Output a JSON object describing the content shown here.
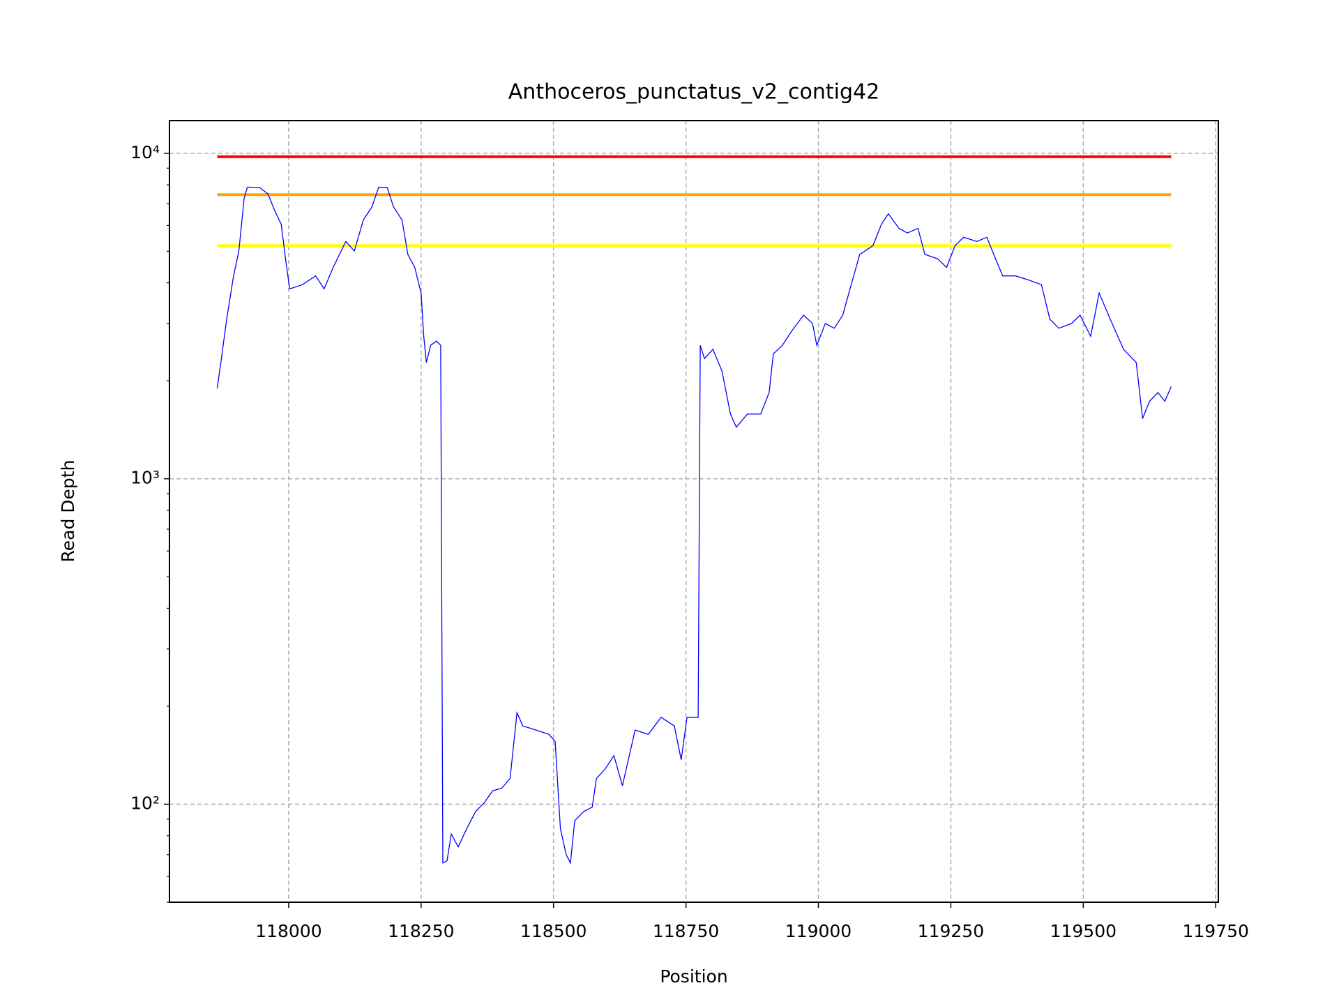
{
  "chart_data": {
    "type": "line",
    "title": "Anthoceros_punctatus_v2_contig42",
    "x_label": "Position",
    "y_label": "Read Depth",
    "log_y": true,
    "grid": true,
    "xlim": [
      117775,
      119755
    ],
    "ylim": [
      50,
      12600
    ],
    "xticks": [
      118000,
      118250,
      118500,
      118750,
      119000,
      119250,
      119500,
      119750
    ],
    "yticks": [
      {
        "value": 100,
        "label": "10²"
      },
      {
        "value": 1000,
        "label": "10³"
      },
      {
        "value": 10000,
        "label": "10⁴"
      }
    ],
    "yminorticks": [
      50,
      60,
      70,
      80,
      90,
      200,
      300,
      400,
      500,
      600,
      700,
      800,
      900,
      2000,
      3000,
      4000,
      5000,
      6000,
      7000,
      8000,
      9000
    ],
    "series": [
      {
        "color": "#0000ff",
        "width": 1.3,
        "x": [
          117865,
          117872,
          117883,
          117896,
          117906,
          117916,
          117922,
          117945,
          117961,
          117974,
          117986,
          117994,
          118002,
          118026,
          118051,
          118067,
          118084,
          118108,
          118124,
          118141,
          118157,
          118170,
          118186,
          118198,
          118214,
          118225,
          118238,
          118250,
          118255,
          118260,
          118268,
          118279,
          118287,
          118291,
          118299,
          118307,
          118320,
          118336,
          118353,
          118369,
          118385,
          118402,
          118418,
          118431,
          118442,
          118467,
          118491,
          118503,
          118513,
          118524,
          118532,
          118540,
          118557,
          118573,
          118581,
          118597,
          118614,
          118630,
          118654,
          118679,
          118703,
          118728,
          118741,
          118752,
          118773,
          118777,
          118785,
          118801,
          118818,
          118834,
          118845,
          118866,
          118891,
          118907,
          118915,
          118932,
          118948,
          118972,
          118989,
          118997,
          119013,
          119030,
          119046,
          119062,
          119078,
          119103,
          119119,
          119132,
          119152,
          119168,
          119188,
          119201,
          119225,
          119242,
          119258,
          119274,
          119299,
          119318,
          119331,
          119348,
          119372,
          119397,
          119421,
          119437,
          119454,
          119478,
          119494,
          119514,
          119530,
          119551,
          119576,
          119600,
          119612,
          119625,
          119641,
          119654,
          119666
        ],
        "values": [
          1895,
          2275,
          3090,
          4200,
          5010,
          7280,
          7870,
          7850,
          7500,
          6640,
          6050,
          4740,
          3830,
          3950,
          4200,
          3830,
          4460,
          5360,
          5010,
          6240,
          6840,
          7870,
          7850,
          6840,
          6240,
          4890,
          4460,
          3720,
          2740,
          2275,
          2570,
          2650,
          2570,
          66,
          67,
          81,
          74,
          84,
          95,
          101,
          110,
          112,
          120,
          191,
          174,
          169,
          164,
          156,
          84,
          70,
          66,
          89,
          95,
          98,
          120,
          128,
          141,
          114,
          169,
          164,
          185,
          174,
          137,
          185,
          185,
          2570,
          2340,
          2500,
          2140,
          1580,
          1440,
          1580,
          1580,
          1840,
          2420,
          2570,
          2820,
          3180,
          3000,
          2570,
          3000,
          2900,
          3180,
          3950,
          4890,
          5200,
          6050,
          6520,
          5880,
          5690,
          5880,
          4890,
          4740,
          4460,
          5200,
          5520,
          5360,
          5520,
          4890,
          4200,
          4200,
          4080,
          3950,
          3090,
          2900,
          3000,
          3180,
          2740,
          3720,
          3090,
          2500,
          2275,
          1530,
          1730,
          1840,
          1730,
          1920
        ]
      },
      {
        "color": "#ff0000",
        "width": 4,
        "x": [
          117865,
          119666
        ],
        "values": [
          9760,
          9760
        ]
      },
      {
        "color": "#ffa500",
        "width": 4,
        "x": [
          117865,
          119666
        ],
        "values": [
          7457,
          7457
        ]
      },
      {
        "color": "#ffff00",
        "width": 4,
        "x": [
          117865,
          119666
        ],
        "values": [
          5200,
          5200
        ]
      }
    ]
  }
}
